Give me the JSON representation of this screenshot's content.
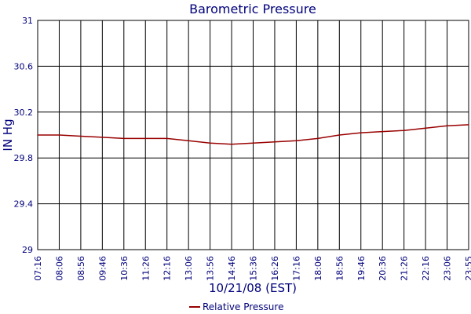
{
  "chart_data": {
    "type": "line",
    "title": "Barometric Pressure",
    "xlabel": "10/21/08 (EST)",
    "ylabel": "IN Hg",
    "ylim": [
      29,
      31
    ],
    "y_ticks": [
      "29",
      "29.4",
      "29.8",
      "30.2",
      "30.6",
      "31"
    ],
    "x_ticks": [
      "07:16",
      "08:06",
      "08:56",
      "09:46",
      "10:36",
      "11:26",
      "12:16",
      "13:06",
      "13:56",
      "14:46",
      "15:36",
      "16:26",
      "17:16",
      "18:06",
      "18:56",
      "19:46",
      "20:36",
      "21:26",
      "22:16",
      "23:06",
      "23:55"
    ],
    "grid": true,
    "legend_position": "bottom-center",
    "colors": {
      "axis": "#00007b",
      "grid": "#000000",
      "series": "#990000"
    },
    "series": [
      {
        "name": "Relative Pressure",
        "x": [
          "07:16",
          "08:06",
          "08:56",
          "09:46",
          "10:36",
          "11:26",
          "12:16",
          "13:06",
          "13:56",
          "14:46",
          "15:36",
          "16:26",
          "17:16",
          "18:06",
          "18:56",
          "19:46",
          "20:36",
          "21:26",
          "22:16",
          "23:06",
          "23:55"
        ],
        "values": [
          30.0,
          30.0,
          29.99,
          29.98,
          29.97,
          29.97,
          29.97,
          29.95,
          29.93,
          29.92,
          29.93,
          29.94,
          29.95,
          29.97,
          30.0,
          30.02,
          30.03,
          30.04,
          30.06,
          30.08,
          30.09
        ]
      }
    ]
  }
}
